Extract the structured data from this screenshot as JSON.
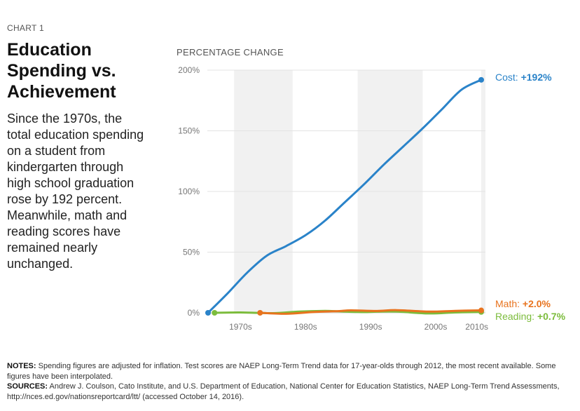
{
  "header": {
    "eyebrow": "CHART 1",
    "title": "Education Spending vs. Achievement",
    "description": "Since the 1970s, the total education spending on a student from kindergarten through high school graduation rose by 192 percent. Meanwhile, math and reading scores have remained nearly unchanged."
  },
  "chart_data": {
    "type": "line",
    "ylabel": "PERCENTAGE CHANGE",
    "xlabel": "",
    "ylim": [
      0,
      200
    ],
    "y_ticks": [
      0,
      50,
      100,
      150,
      200
    ],
    "y_tick_labels": [
      "0%",
      "50%",
      "100%",
      "150%",
      "200%"
    ],
    "xlim": [
      1970,
      2012
    ],
    "x_ticks": [
      1975,
      1985,
      1995,
      2005,
      2010
    ],
    "x_tick_labels": [
      "1970s",
      "1980s",
      "1990s",
      "2000s",
      "2010s"
    ],
    "shaded_bands": [
      [
        1974,
        1983
      ],
      [
        1993,
        2003
      ],
      [
        2012,
        2013
      ]
    ],
    "grid": "horizontal",
    "series": [
      {
        "name": "Cost",
        "end_label_value": "+192%",
        "color": "#2a83c9",
        "x": [
          1970,
          1973,
          1976,
          1979,
          1982,
          1985,
          1988,
          1991,
          1994,
          1997,
          2000,
          2003,
          2006,
          2009,
          2012
        ],
        "y": [
          0,
          16,
          33,
          47,
          55,
          64,
          76,
          91,
          106,
          122,
          137,
          152,
          168,
          184,
          192
        ]
      },
      {
        "name": "Math",
        "end_label_value": "+2.0%",
        "color": "#e8731e",
        "x": [
          1978,
          1982,
          1986,
          1990,
          1992,
          1996,
          1999,
          2004,
          2008,
          2012
        ],
        "y": [
          0,
          -0.8,
          0.6,
          1.4,
          2.0,
          1.5,
          2.2,
          1.0,
          1.6,
          2.0
        ]
      },
      {
        "name": "Reading",
        "end_label_value": "+0.7%",
        "color": "#7cbc3c",
        "x": [
          1971,
          1975,
          1980,
          1984,
          1988,
          1990,
          1992,
          1994,
          1996,
          1999,
          2004,
          2008,
          2012
        ],
        "y": [
          0,
          0.3,
          -0.3,
          1.0,
          1.6,
          1.2,
          0.8,
          0.6,
          0.9,
          1.0,
          -0.5,
          0.3,
          0.7
        ]
      }
    ]
  },
  "notes": {
    "notes_label": "NOTES:",
    "notes_text": " Spending figures are adjusted for inflation. Test scores are NAEP Long-Term Trend data for 17-year-olds through 2012, the most recent available. Some figures have been interpolated.",
    "sources_label": "SOURCES:",
    "sources_text": " Andrew J. Coulson, Cato Institute, and U.S. Department of Education, National Center for Education Statistics, NAEP Long-Term Trend Assessments, http://nces.ed.gov/nationsreportcard/ltt/ (accessed October 14, 2016)."
  }
}
